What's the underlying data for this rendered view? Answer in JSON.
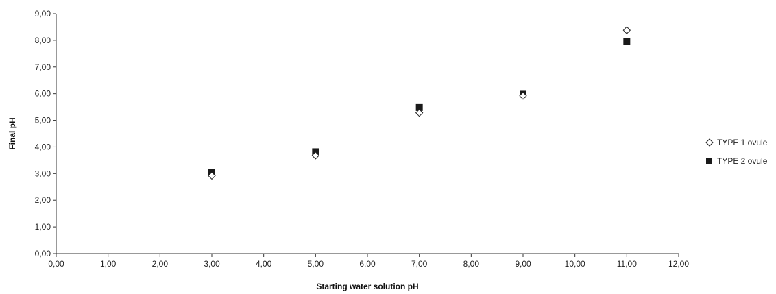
{
  "chart_data": {
    "type": "scatter",
    "xlabel": "Starting water solution pH",
    "ylabel": "Final pH",
    "xlim": [
      0,
      12
    ],
    "ylim": [
      0,
      9
    ],
    "x_ticks": [
      "0,00",
      "1,00",
      "2,00",
      "3,00",
      "4,00",
      "5,00",
      "6,00",
      "7,00",
      "8,00",
      "9,00",
      "10,00",
      "11,00",
      "12,00"
    ],
    "y_ticks": [
      "0,00",
      "1,00",
      "2,00",
      "3,00",
      "4,00",
      "5,00",
      "6,00",
      "7,00",
      "8,00",
      "9,00"
    ],
    "grid": false,
    "legend_position": "right",
    "series": [
      {
        "name": "TYPE 1 ovule",
        "marker": "open-diamond",
        "color": "#222222",
        "points": [
          {
            "x": 3,
            "y": 2.92
          },
          {
            "x": 5,
            "y": 3.68
          },
          {
            "x": 7,
            "y": 5.28
          },
          {
            "x": 9,
            "y": 5.92
          },
          {
            "x": 11,
            "y": 8.38
          }
        ]
      },
      {
        "name": "TYPE 2 ovule",
        "marker": "filled-square",
        "color": "#1a1a1a",
        "points": [
          {
            "x": 3,
            "y": 3.05
          },
          {
            "x": 5,
            "y": 3.82
          },
          {
            "x": 7,
            "y": 5.48
          },
          {
            "x": 9,
            "y": 5.98
          },
          {
            "x": 11,
            "y": 7.95
          }
        ]
      }
    ]
  }
}
